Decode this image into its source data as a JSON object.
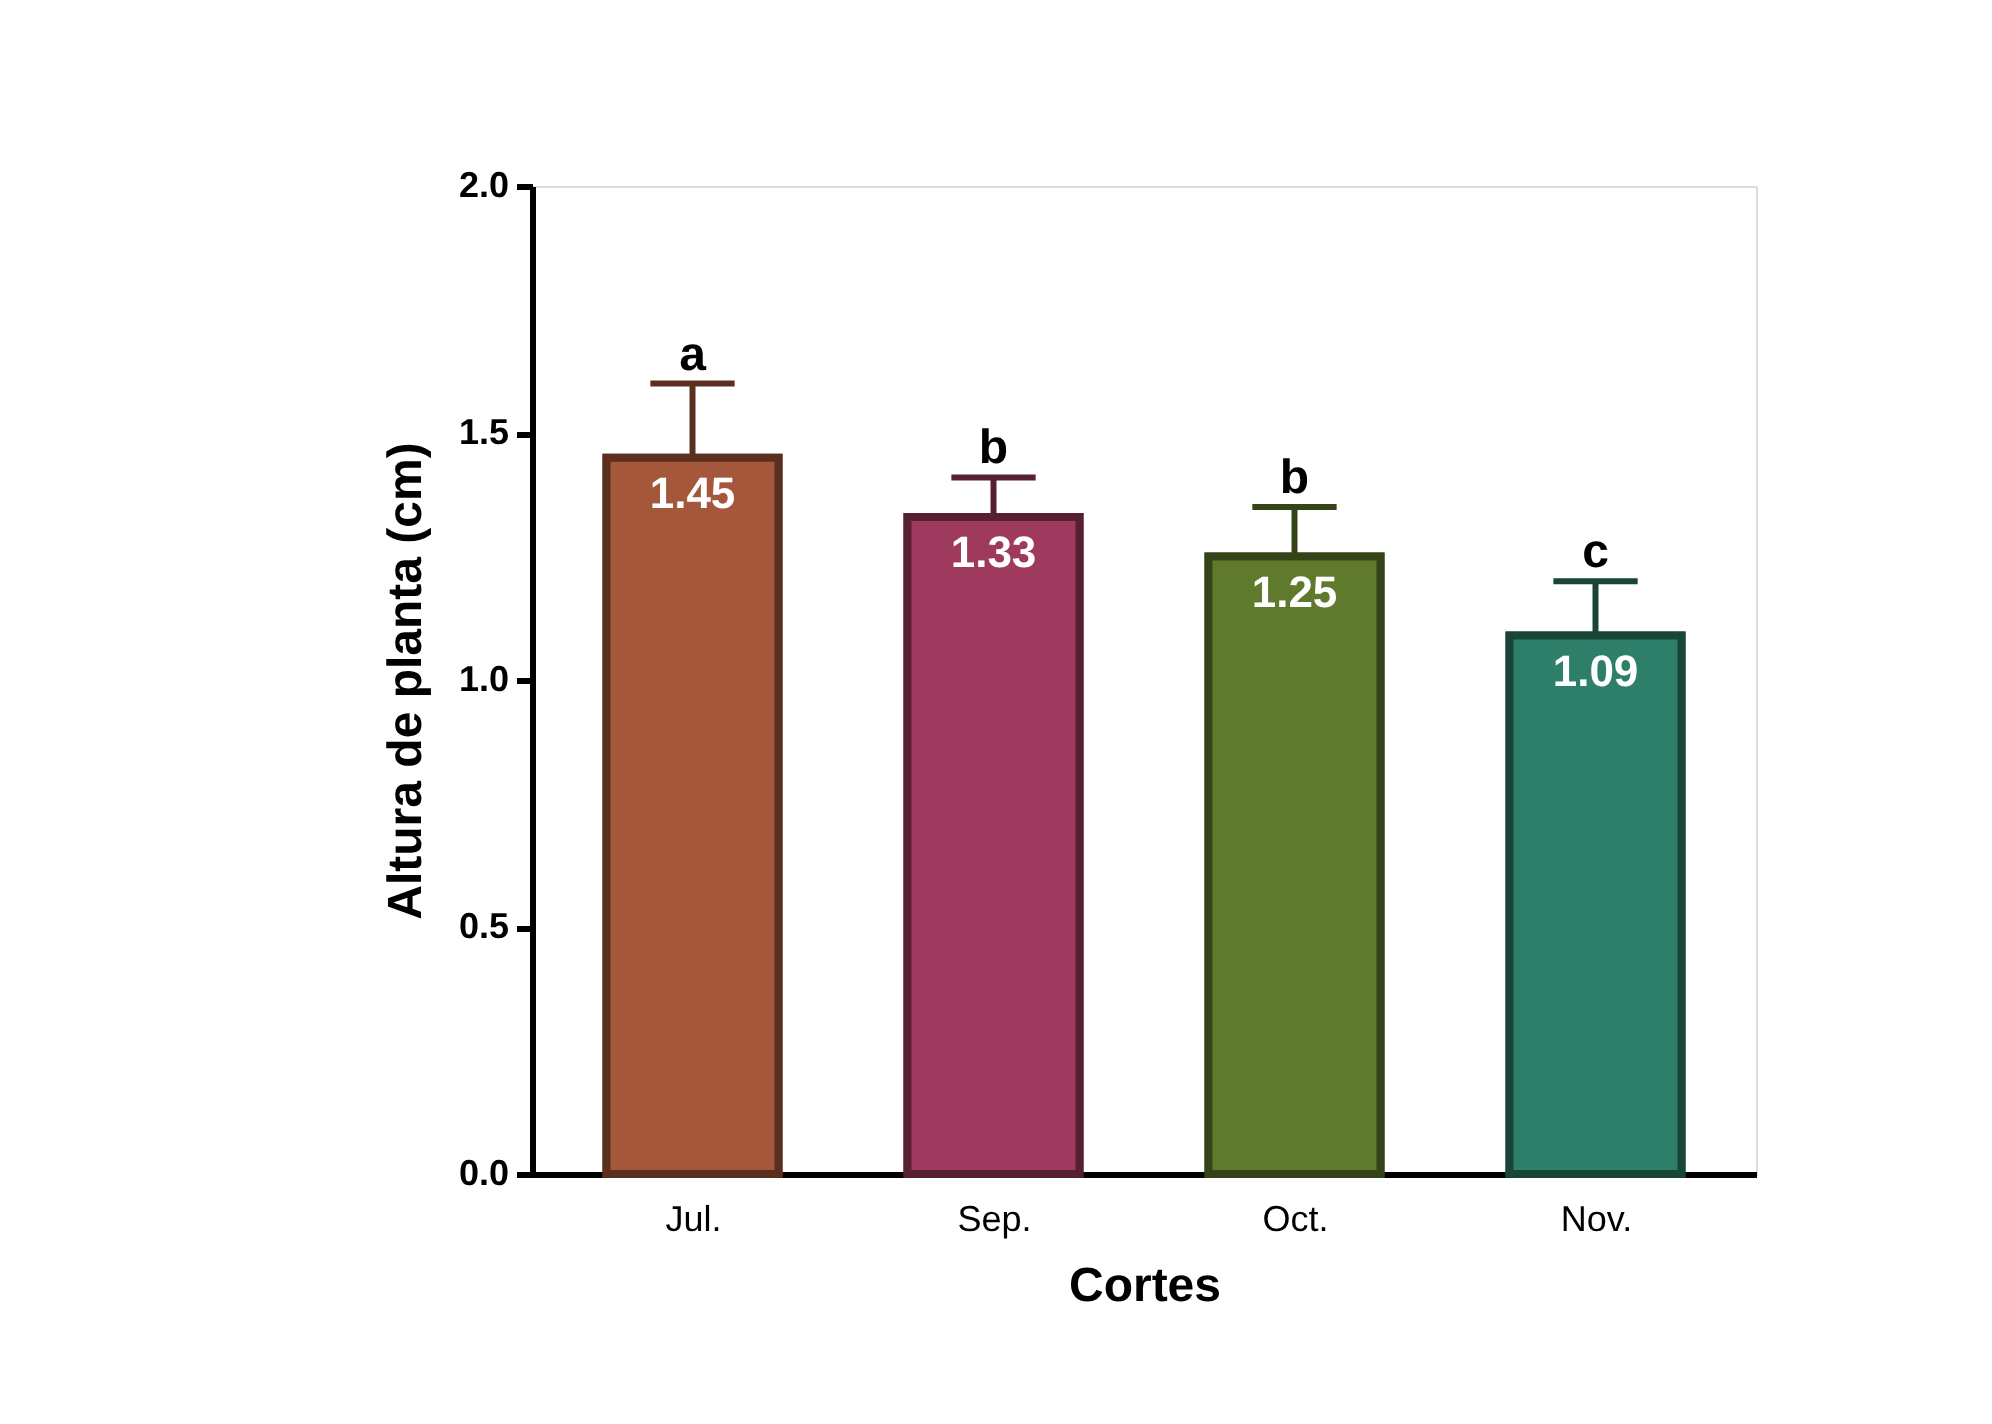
{
  "chart_data": {
    "type": "bar",
    "xlabel": "Cortes",
    "ylabel": "Altura de planta (cm)",
    "categories": [
      "Jul.",
      "Sep.",
      "Oct.",
      "Nov."
    ],
    "values": [
      1.45,
      1.33,
      1.25,
      1.09
    ],
    "colors": [
      "#a5573b",
      "#9e3a5e",
      "#5f7a2c",
      "#2e7f69"
    ],
    "errors": [
      0.15,
      0.08,
      0.1,
      0.11
    ],
    "data_labels": true,
    "annotations": [
      {
        "text": "a",
        "x": "Jul.",
        "y": 1.6
      },
      {
        "text": "b",
        "x": "Sep.",
        "y": 1.41
      },
      {
        "text": "b",
        "x": "Oct.",
        "y": 1.35
      },
      {
        "text": "c",
        "x": "Nov.",
        "y": 1.2
      }
    ],
    "ylim": [
      0,
      2.0
    ],
    "yticks": [
      {
        "value": 0,
        "label": "0.0"
      },
      {
        "value": 0.5,
        "label": "0.5"
      },
      {
        "value": 1.0,
        "label": "1.0"
      },
      {
        "value": 1.5,
        "label": "1.5"
      },
      {
        "value": 2.0,
        "label": "2.0"
      }
    ],
    "grid": false
  }
}
